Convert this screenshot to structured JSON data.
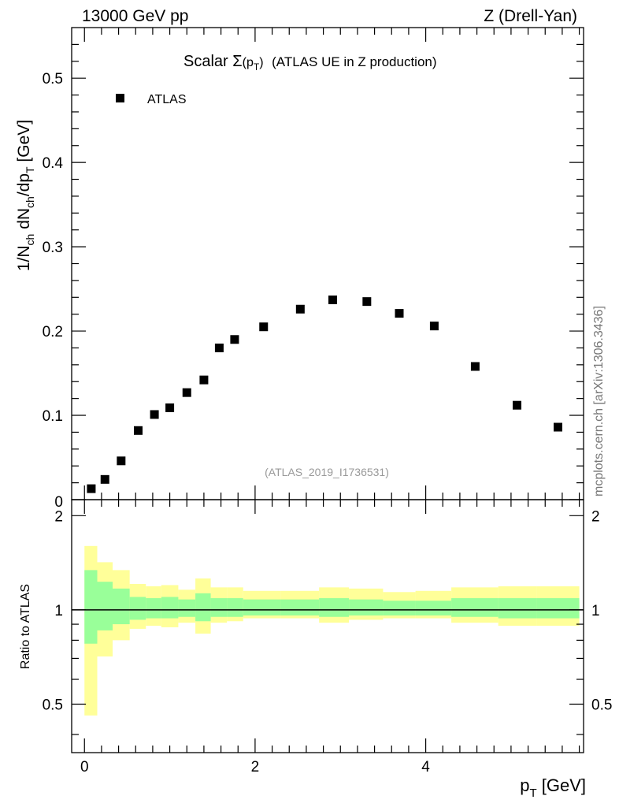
{
  "header": {
    "left": "13000 GeV pp",
    "right": "Z (Drell-Yan)"
  },
  "side_label": "mcplots.cern.ch [arXiv:1306.3436]",
  "chart_data": [
    {
      "type": "scatter",
      "title": "Scalar Σ(p_T) (ATLAS UE in Z production)",
      "title_parts": {
        "pre": "Scalar ",
        "sigma": "Σ",
        "p": "(p",
        "sub": "T",
        "post": ")",
        "rest": "(ATLAS UE in Z production)"
      },
      "watermark": "(ATLAS_2019_I1736531)",
      "ylabel": "1/N_ch dN_ch/dp_T [GeV]",
      "ylabel_parts": {
        "a": "1/N",
        "b": "ch",
        "c": " dN",
        "d": "ch",
        "e": "/dp",
        "f": "T",
        "g": " [GeV]"
      },
      "xlim": [
        -0.15,
        5.85
      ],
      "ylim": [
        0,
        0.56
      ],
      "yticks": [
        0.1,
        0.2,
        0.3,
        0.4,
        0.5
      ],
      "ytick_labels": [
        "0.1",
        "0.2",
        "0.3",
        "0.4",
        "0.5"
      ],
      "y_zero_label": "0",
      "legend": {
        "label": "ATLAS",
        "position": "top-left"
      },
      "series": [
        {
          "name": "ATLAS",
          "x": [
            0.08,
            0.24,
            0.43,
            0.63,
            0.82,
            1.0,
            1.2,
            1.4,
            1.58,
            1.76,
            2.1,
            2.53,
            2.91,
            3.31,
            3.69,
            4.1,
            4.58,
            5.07,
            5.55
          ],
          "y": [
            0.013,
            0.024,
            0.046,
            0.082,
            0.101,
            0.109,
            0.127,
            0.142,
            0.18,
            0.19,
            0.205,
            0.226,
            0.237,
            0.235,
            0.221,
            0.206,
            0.158,
            0.112,
            0.086
          ]
        }
      ]
    },
    {
      "type": "area",
      "title": "",
      "ylabel": "Ratio to ATLAS",
      "xlabel": "p_T [GeV]",
      "xlabel_parts": {
        "p": "p",
        "sub": "T",
        "unit": " [GeV]"
      },
      "xlim": [
        -0.15,
        5.85
      ],
      "ylim": [
        0.35,
        2.25
      ],
      "xticks": [
        0,
        2,
        4
      ],
      "xtick_labels": [
        "0",
        "2",
        "4"
      ],
      "yticks": [
        0.5,
        1,
        2
      ],
      "ytick_labels": [
        "0.5",
        "1",
        "2"
      ],
      "reference_line": 1.0,
      "bin_edges": [
        0.0,
        0.15,
        0.33,
        0.53,
        0.72,
        0.9,
        1.1,
        1.3,
        1.48,
        1.67,
        1.86,
        2.3,
        2.75,
        3.1,
        3.5,
        3.88,
        4.3,
        4.85,
        5.3,
        5.8
      ],
      "bands": [
        {
          "name": "total uncertainty",
          "color": "#ffff99",
          "lower": [
            0.46,
            0.71,
            0.8,
            0.87,
            0.89,
            0.88,
            0.91,
            0.84,
            0.91,
            0.92,
            0.94,
            0.94,
            0.91,
            0.93,
            0.94,
            0.94,
            0.91,
            0.89,
            0.89
          ],
          "upper": [
            1.6,
            1.42,
            1.34,
            1.21,
            1.19,
            1.2,
            1.16,
            1.26,
            1.18,
            1.18,
            1.15,
            1.15,
            1.18,
            1.17,
            1.14,
            1.15,
            1.18,
            1.19,
            1.19
          ]
        },
        {
          "name": "statistical uncertainty",
          "color": "#99ff99",
          "lower": [
            0.78,
            0.86,
            0.9,
            0.93,
            0.94,
            0.94,
            0.95,
            0.92,
            0.95,
            0.95,
            0.96,
            0.96,
            0.95,
            0.96,
            0.96,
            0.96,
            0.95,
            0.94,
            0.94
          ],
          "upper": [
            1.34,
            1.23,
            1.17,
            1.1,
            1.09,
            1.1,
            1.08,
            1.13,
            1.09,
            1.09,
            1.08,
            1.08,
            1.09,
            1.08,
            1.07,
            1.07,
            1.09,
            1.09,
            1.09
          ]
        }
      ]
    }
  ]
}
